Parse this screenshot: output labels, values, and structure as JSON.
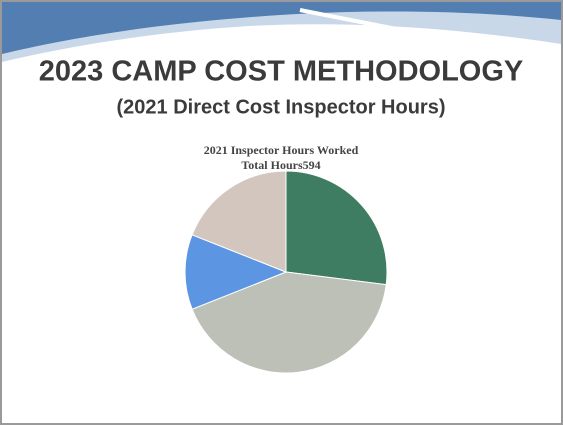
{
  "slide": {
    "title": "2023 CAMP COST METHODOLOGY",
    "subtitle": "(2021 Direct Cost Inspector Hours)"
  },
  "chart_data": {
    "type": "pie",
    "title": "2021 Inspector Hours Worked",
    "subtitle": "Total Hours594",
    "values": [
      27,
      42,
      12,
      19
    ],
    "colors": [
      "#3f7d62",
      "#bcc0b7",
      "#5c95e2",
      "#d2c6bf"
    ]
  }
}
